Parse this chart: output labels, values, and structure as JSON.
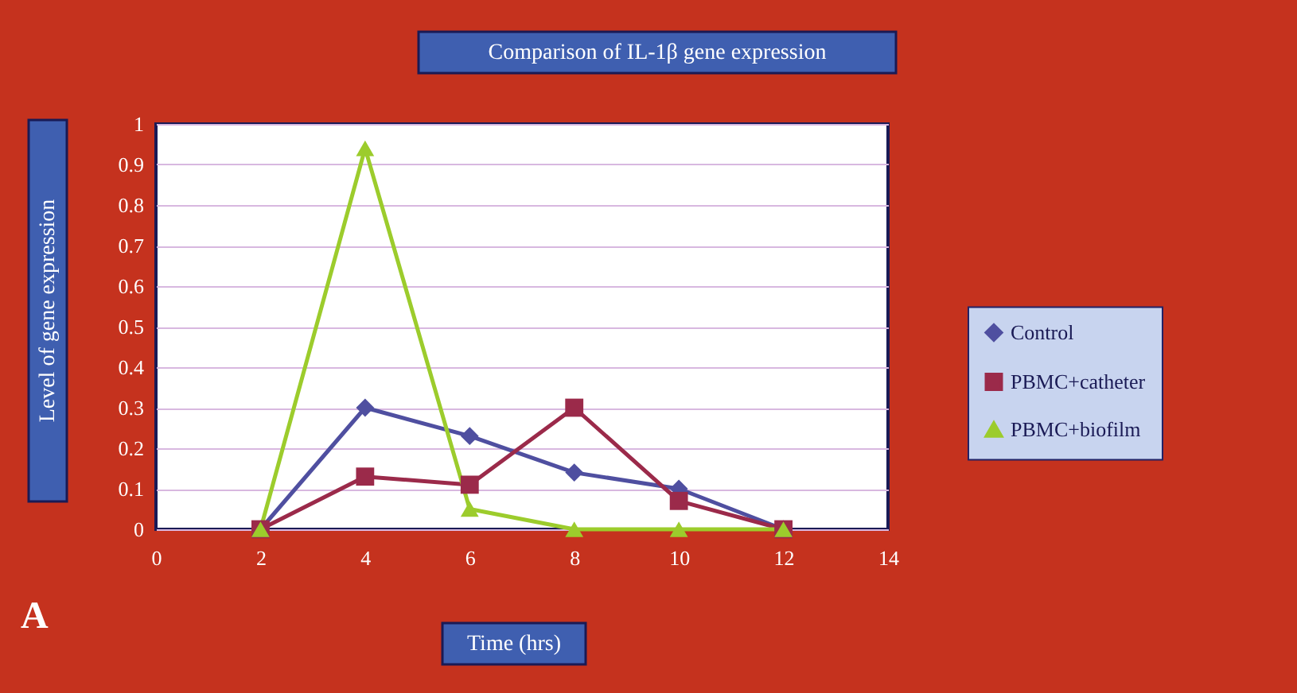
{
  "chart_data": {
    "type": "line",
    "title": "Comparison of IL-1β gene expression",
    "xlabel": "Time (hrs)",
    "ylabel": "Level of gene expression",
    "x": [
      2,
      4,
      6,
      8,
      10,
      12
    ],
    "series": [
      {
        "name": "Control",
        "color": "#4f4fa0",
        "marker": "diamond",
        "values": [
          0,
          0.3,
          0.23,
          0.14,
          0.1,
          0
        ]
      },
      {
        "name": "PBMC+catheter",
        "color": "#9b2a4a",
        "marker": "square",
        "values": [
          0,
          0.13,
          0.11,
          0.3,
          0.07,
          0
        ]
      },
      {
        "name": "PBMC+biofilm",
        "color": "#9ccc2c",
        "marker": "triangle",
        "values": [
          0,
          0.94,
          0.05,
          0,
          0,
          0
        ]
      }
    ],
    "xlim": [
      0,
      14
    ],
    "xticks": [
      0,
      2,
      4,
      6,
      8,
      10,
      12,
      14
    ],
    "ylim": [
      0,
      1
    ],
    "yticks": [
      0,
      0.1,
      0.2,
      0.3,
      0.4,
      0.5,
      0.6,
      0.7,
      0.8,
      0.9,
      1
    ],
    "grid": "y",
    "legend": "right",
    "line_style": "solid",
    "annotations": [
      "A"
    ]
  }
}
